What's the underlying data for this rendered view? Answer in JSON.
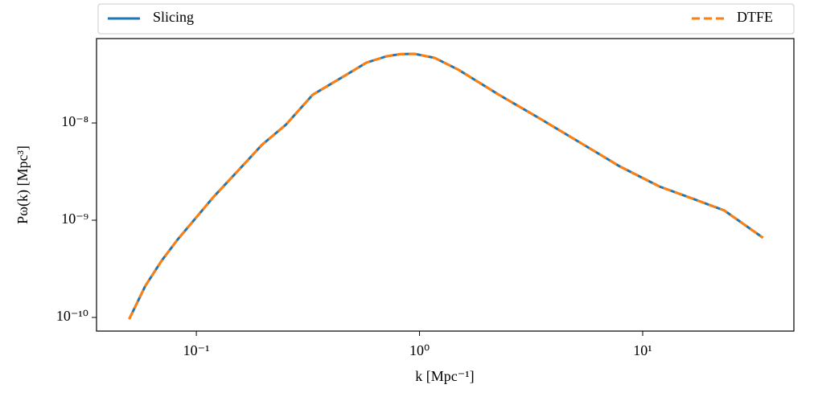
{
  "chart_data": {
    "type": "line",
    "x_label": "k [Mpc⁻¹]",
    "y_label": "Pω(k) [Mpc³]",
    "x": [
      0.05,
      0.059,
      0.0697,
      0.0823,
      0.1195,
      0.153,
      0.197,
      0.252,
      0.332,
      0.47,
      0.578,
      0.711,
      0.819,
      0.951,
      1.17,
      1.5,
      2.27,
      3.44,
      5.21,
      7.89,
      11.9,
      16.7,
      23.2,
      34.6
    ],
    "series": [
      {
        "name": "Slicing",
        "color": "#1f77b4",
        "dashed": false,
        "values": [
          9.6e-11,
          2.1e-10,
          3.8e-10,
          6.3e-10,
          1.74e-09,
          3.19e-09,
          5.98e-09,
          9.6e-09,
          1.95e-08,
          3.13e-08,
          4.17e-08,
          4.85e-08,
          5.1e-08,
          5.14e-08,
          4.67e-08,
          3.51e-08,
          1.95e-08,
          1.12e-08,
          6.34e-09,
          3.58e-09,
          2.22e-09,
          1.67e-09,
          1.26e-09,
          6.6e-10
        ]
      },
      {
        "name": "DTFE",
        "color": "#ff7f0e",
        "dashed": true,
        "values": [
          9.6e-11,
          2.1e-10,
          3.8e-10,
          6.3e-10,
          1.74e-09,
          3.19e-09,
          5.98e-09,
          9.6e-09,
          1.95e-08,
          3.13e-08,
          4.17e-08,
          4.85e-08,
          5.1e-08,
          5.14e-08,
          4.67e-08,
          3.51e-08,
          1.95e-08,
          1.12e-08,
          6.34e-09,
          3.58e-09,
          2.22e-09,
          1.67e-09,
          1.26e-09,
          6.6e-10
        ]
      }
    ],
    "xlog": true,
    "ylog": true,
    "xlim": [
      0.0357,
      47.6
    ],
    "ylim": [
      7.24e-11,
      7.38e-08
    ],
    "xticks": [
      {
        "value": 0.1,
        "label": "10⁻¹"
      },
      {
        "value": 1,
        "label": "10⁰"
      },
      {
        "value": 10,
        "label": "10¹"
      }
    ],
    "yticks": [
      {
        "value": 1e-10,
        "label": "10⁻¹⁰"
      },
      {
        "value": 1e-09,
        "label": "10⁻⁹"
      },
      {
        "value": 1e-08,
        "label": "10⁻⁸"
      }
    ],
    "legend": "top-expanded",
    "grid": false
  }
}
